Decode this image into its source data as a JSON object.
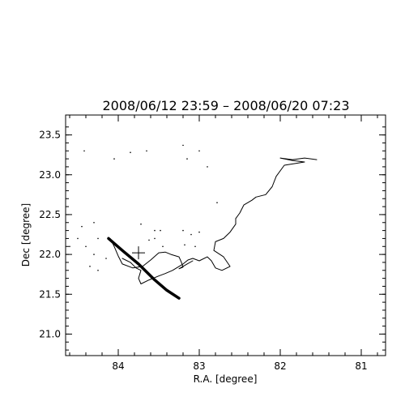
{
  "chart_data": {
    "type": "scatter",
    "title": "2008/06/12 23:59 – 2008/06/20 07:23",
    "xlabel": "R.A. [degree]",
    "ylabel": "Dec [degree]",
    "xlim": [
      84.65,
      80.7
    ],
    "ylim": [
      20.73,
      23.75
    ],
    "x_ticks": [
      84,
      83,
      82,
      81
    ],
    "x_tick_labels": [
      "84",
      "83",
      "82",
      "81"
    ],
    "y_ticks": [
      21.0,
      21.5,
      22.0,
      22.5,
      23.0,
      23.5
    ],
    "y_tick_labels": [
      "21.0",
      "21.5",
      "22.0",
      "22.5",
      "23.0",
      "23.5"
    ],
    "grid": false,
    "series": [
      {
        "kind": "trajectory",
        "values": [
          [
            81.55,
            23.19
          ],
          [
            81.7,
            23.21
          ],
          [
            81.85,
            23.19
          ],
          [
            82.0,
            23.21
          ],
          [
            81.85,
            23.18
          ],
          [
            81.7,
            23.16
          ],
          [
            81.95,
            23.12
          ],
          [
            82.05,
            22.98
          ],
          [
            82.1,
            22.85
          ],
          [
            82.18,
            22.75
          ],
          [
            82.3,
            22.72
          ],
          [
            82.35,
            22.68
          ],
          [
            82.45,
            22.62
          ],
          [
            82.5,
            22.52
          ],
          [
            82.55,
            22.45
          ],
          [
            82.55,
            22.38
          ],
          [
            82.62,
            22.28
          ],
          [
            82.7,
            22.2
          ],
          [
            82.8,
            22.16
          ],
          [
            82.82,
            22.05
          ],
          [
            82.7,
            21.97
          ],
          [
            82.62,
            21.85
          ],
          [
            82.72,
            21.8
          ],
          [
            82.8,
            21.83
          ],
          [
            82.85,
            21.92
          ],
          [
            82.9,
            21.97
          ],
          [
            83.0,
            21.92
          ],
          [
            83.08,
            21.95
          ],
          [
            83.14,
            21.93
          ],
          [
            83.2,
            21.88
          ],
          [
            83.33,
            21.8
          ],
          [
            83.42,
            21.76
          ],
          [
            83.5,
            21.73
          ],
          [
            83.62,
            21.68
          ],
          [
            83.72,
            21.63
          ],
          [
            83.75,
            21.7
          ],
          [
            83.72,
            21.8
          ],
          [
            83.78,
            21.83
          ],
          [
            83.85,
            21.9
          ],
          [
            83.95,
            21.95
          ]
        ]
      },
      {
        "kind": "trajectory",
        "values": [
          [
            84.1,
            22.2
          ],
          [
            84.05,
            22.1
          ],
          [
            84.0,
            21.98
          ],
          [
            83.95,
            21.88
          ],
          [
            83.82,
            21.83
          ],
          [
            83.7,
            21.85
          ],
          [
            83.6,
            21.93
          ],
          [
            83.5,
            22.02
          ],
          [
            83.42,
            22.03
          ],
          [
            83.35,
            22.0
          ],
          [
            83.25,
            21.97
          ],
          [
            83.22,
            21.9
          ],
          [
            83.2,
            21.84
          ],
          [
            83.25,
            21.82
          ],
          [
            83.15,
            21.88
          ],
          [
            83.08,
            21.92
          ]
        ]
      },
      {
        "kind": "thick-track",
        "values": [
          [
            84.12,
            22.2
          ],
          [
            83.95,
            22.05
          ],
          [
            83.75,
            21.88
          ],
          [
            83.55,
            21.68
          ],
          [
            83.4,
            21.55
          ],
          [
            83.25,
            21.45
          ]
        ]
      },
      {
        "kind": "dots",
        "values": [
          [
            84.45,
            22.35
          ],
          [
            84.3,
            22.4
          ],
          [
            84.25,
            22.2
          ],
          [
            84.4,
            22.1
          ],
          [
            84.35,
            21.85
          ],
          [
            84.25,
            21.8
          ],
          [
            84.3,
            22.0
          ],
          [
            84.15,
            21.95
          ],
          [
            84.5,
            22.2
          ],
          [
            84.42,
            23.3
          ],
          [
            84.05,
            23.2
          ],
          [
            83.85,
            23.28
          ],
          [
            83.65,
            23.3
          ],
          [
            83.2,
            23.37
          ],
          [
            83.15,
            23.2
          ],
          [
            83.0,
            23.3
          ],
          [
            83.55,
            22.3
          ],
          [
            83.48,
            22.3
          ],
          [
            83.55,
            22.2
          ],
          [
            83.62,
            22.18
          ],
          [
            83.45,
            22.1
          ],
          [
            83.2,
            22.3
          ],
          [
            83.1,
            22.25
          ],
          [
            83.0,
            22.28
          ],
          [
            83.05,
            22.1
          ],
          [
            83.72,
            22.38
          ],
          [
            84.6,
            22.1
          ],
          [
            83.18,
            22.12
          ],
          [
            82.78,
            22.65
          ],
          [
            82.9,
            23.1
          ]
        ]
      }
    ],
    "markers": [
      {
        "symbol": "plus",
        "x": 83.75,
        "y": 22.02
      }
    ]
  }
}
